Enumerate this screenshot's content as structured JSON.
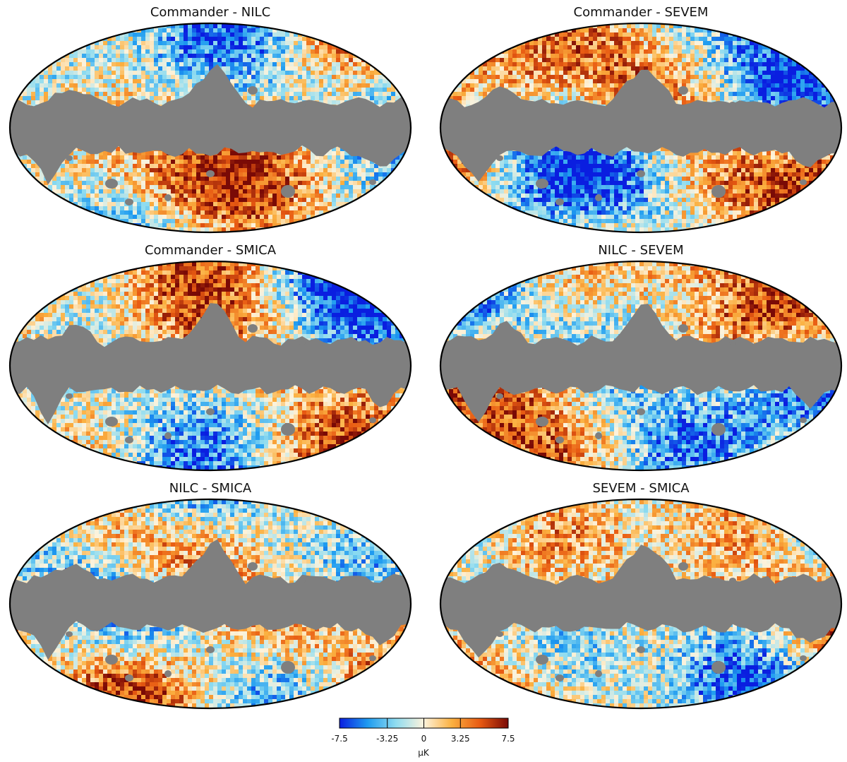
{
  "panels": [
    {
      "id": "commander-nilc",
      "title": "Commander - NILC"
    },
    {
      "id": "commander-sevem",
      "title": "Commander - SEVEM"
    },
    {
      "id": "commander-smica",
      "title": "Commander - SMICA"
    },
    {
      "id": "nilc-sevem",
      "title": "NILC - SEVEM"
    },
    {
      "id": "nilc-smica",
      "title": "NILC - SMICA"
    },
    {
      "id": "sevem-smica",
      "title": "SEVEM - SMICA"
    }
  ],
  "colorbar": {
    "min": -7.5,
    "max": 7.5,
    "ticks": [
      "-7.5",
      "-3.25",
      "0",
      "3.25",
      "7.5"
    ],
    "tick_values": [
      -7.5,
      -3.25,
      0,
      3.25,
      7.5
    ],
    "unit": "μK",
    "colors": [
      "#0a1ee0",
      "#1e9bf0",
      "#8fdcf0",
      "#fdf3dc",
      "#fbb040",
      "#e85a12",
      "#7a0a06"
    ]
  },
  "colors": {
    "mask": "#7f7f7f",
    "outline": "#000000"
  }
}
